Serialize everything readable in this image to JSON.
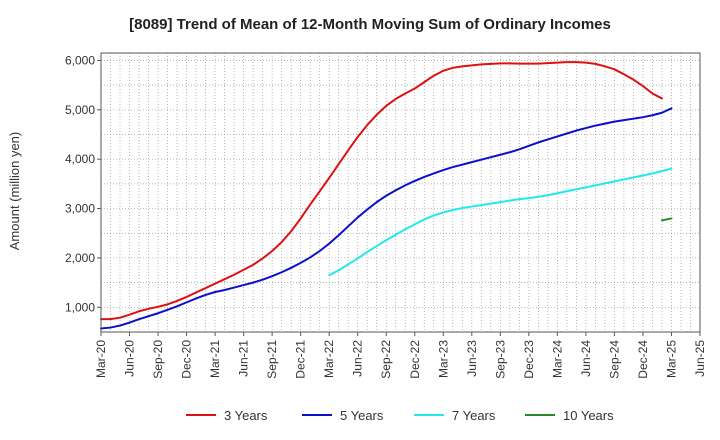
{
  "chart_data": {
    "type": "line",
    "title": "[8089]  Trend of Mean of 12-Month Moving Sum of Ordinary Incomes",
    "ylabel": "Amount (million yen)",
    "xlabel": "",
    "ylim": [
      500,
      6150
    ],
    "yticks": [
      1000,
      2000,
      3000,
      4000,
      5000,
      6000
    ],
    "ytick_labels": [
      "1,000",
      "2,000",
      "3,000",
      "4,000",
      "5,000",
      "6,000"
    ],
    "x_range": [
      0,
      63
    ],
    "xticks": [
      0,
      3,
      6,
      9,
      12,
      15,
      18,
      21,
      24,
      27,
      30,
      33,
      36,
      39,
      42,
      45,
      48,
      51,
      54,
      57,
      60,
      63
    ],
    "xtick_labels": [
      "Mar-20",
      "Jun-20",
      "Sep-20",
      "Dec-20",
      "Mar-21",
      "Jun-21",
      "Sep-21",
      "Dec-21",
      "Mar-22",
      "Jun-22",
      "Sep-22",
      "Dec-22",
      "Mar-23",
      "Jun-23",
      "Sep-23",
      "Dec-23",
      "Mar-24",
      "Jun-24",
      "Sep-24",
      "Dec-24",
      "Mar-25",
      "Jun-25"
    ],
    "grid": true,
    "legend_position": "bottom",
    "series": [
      {
        "name": "3 Years",
        "color": "#dd1111",
        "points": [
          [
            0,
            760
          ],
          [
            1,
            760
          ],
          [
            2,
            790
          ],
          [
            3,
            850
          ],
          [
            4,
            920
          ],
          [
            5,
            970
          ],
          [
            6,
            1010
          ],
          [
            7,
            1060
          ],
          [
            8,
            1130
          ],
          [
            9,
            1210
          ],
          [
            10,
            1300
          ],
          [
            11,
            1390
          ],
          [
            12,
            1480
          ],
          [
            13,
            1570
          ],
          [
            14,
            1660
          ],
          [
            15,
            1760
          ],
          [
            16,
            1860
          ],
          [
            17,
            1990
          ],
          [
            18,
            2140
          ],
          [
            19,
            2320
          ],
          [
            20,
            2540
          ],
          [
            21,
            2800
          ],
          [
            22,
            3080
          ],
          [
            23,
            3350
          ],
          [
            24,
            3620
          ],
          [
            25,
            3900
          ],
          [
            26,
            4180
          ],
          [
            27,
            4450
          ],
          [
            28,
            4690
          ],
          [
            29,
            4900
          ],
          [
            30,
            5080
          ],
          [
            31,
            5220
          ],
          [
            32,
            5330
          ],
          [
            33,
            5430
          ],
          [
            34,
            5560
          ],
          [
            35,
            5690
          ],
          [
            36,
            5790
          ],
          [
            37,
            5850
          ],
          [
            38,
            5880
          ],
          [
            39,
            5900
          ],
          [
            40,
            5920
          ],
          [
            41,
            5930
          ],
          [
            42,
            5940
          ],
          [
            43,
            5940
          ],
          [
            44,
            5935
          ],
          [
            45,
            5935
          ],
          [
            46,
            5935
          ],
          [
            47,
            5945
          ],
          [
            48,
            5955
          ],
          [
            49,
            5965
          ],
          [
            50,
            5965
          ],
          [
            51,
            5955
          ],
          [
            52,
            5930
          ],
          [
            53,
            5880
          ],
          [
            54,
            5820
          ],
          [
            55,
            5720
          ],
          [
            56,
            5610
          ],
          [
            57,
            5480
          ],
          [
            58,
            5330
          ],
          [
            59,
            5230
          ]
        ]
      },
      {
        "name": "5 Years",
        "color": "#0a10cc",
        "points": [
          [
            0,
            570
          ],
          [
            1,
            590
          ],
          [
            2,
            630
          ],
          [
            3,
            690
          ],
          [
            4,
            760
          ],
          [
            5,
            820
          ],
          [
            6,
            880
          ],
          [
            7,
            950
          ],
          [
            8,
            1020
          ],
          [
            9,
            1100
          ],
          [
            10,
            1180
          ],
          [
            11,
            1250
          ],
          [
            12,
            1310
          ],
          [
            13,
            1350
          ],
          [
            14,
            1400
          ],
          [
            15,
            1450
          ],
          [
            16,
            1500
          ],
          [
            17,
            1560
          ],
          [
            18,
            1630
          ],
          [
            19,
            1710
          ],
          [
            20,
            1800
          ],
          [
            21,
            1900
          ],
          [
            22,
            2010
          ],
          [
            23,
            2140
          ],
          [
            24,
            2290
          ],
          [
            25,
            2460
          ],
          [
            26,
            2640
          ],
          [
            27,
            2820
          ],
          [
            28,
            2980
          ],
          [
            29,
            3130
          ],
          [
            30,
            3260
          ],
          [
            31,
            3370
          ],
          [
            32,
            3470
          ],
          [
            33,
            3560
          ],
          [
            34,
            3640
          ],
          [
            35,
            3710
          ],
          [
            36,
            3780
          ],
          [
            37,
            3840
          ],
          [
            38,
            3890
          ],
          [
            39,
            3940
          ],
          [
            40,
            3990
          ],
          [
            41,
            4040
          ],
          [
            42,
            4090
          ],
          [
            43,
            4140
          ],
          [
            44,
            4200
          ],
          [
            45,
            4270
          ],
          [
            46,
            4340
          ],
          [
            47,
            4400
          ],
          [
            48,
            4460
          ],
          [
            49,
            4520
          ],
          [
            50,
            4580
          ],
          [
            51,
            4630
          ],
          [
            52,
            4680
          ],
          [
            53,
            4720
          ],
          [
            54,
            4760
          ],
          [
            55,
            4790
          ],
          [
            56,
            4820
          ],
          [
            57,
            4850
          ],
          [
            58,
            4890
          ],
          [
            59,
            4940
          ],
          [
            60,
            5030
          ]
        ]
      },
      {
        "name": "7 Years",
        "color": "#22e8ee",
        "points": [
          [
            24,
            1650
          ],
          [
            25,
            1750
          ],
          [
            26,
            1870
          ],
          [
            27,
            1990
          ],
          [
            28,
            2120
          ],
          [
            29,
            2240
          ],
          [
            30,
            2360
          ],
          [
            31,
            2470
          ],
          [
            32,
            2580
          ],
          [
            33,
            2680
          ],
          [
            34,
            2780
          ],
          [
            35,
            2860
          ],
          [
            36,
            2920
          ],
          [
            37,
            2970
          ],
          [
            38,
            3010
          ],
          [
            39,
            3040
          ],
          [
            40,
            3070
          ],
          [
            41,
            3100
          ],
          [
            42,
            3130
          ],
          [
            43,
            3160
          ],
          [
            44,
            3190
          ],
          [
            45,
            3210
          ],
          [
            46,
            3240
          ],
          [
            47,
            3270
          ],
          [
            48,
            3310
          ],
          [
            49,
            3350
          ],
          [
            50,
            3390
          ],
          [
            51,
            3430
          ],
          [
            52,
            3470
          ],
          [
            53,
            3510
          ],
          [
            54,
            3550
          ],
          [
            55,
            3590
          ],
          [
            56,
            3630
          ],
          [
            57,
            3670
          ],
          [
            58,
            3710
          ],
          [
            59,
            3760
          ],
          [
            60,
            3810
          ]
        ]
      },
      {
        "name": "10 Years",
        "color": "#2a8a2a",
        "points": [
          [
            59,
            2760
          ],
          [
            60,
            2800
          ]
        ]
      }
    ]
  }
}
